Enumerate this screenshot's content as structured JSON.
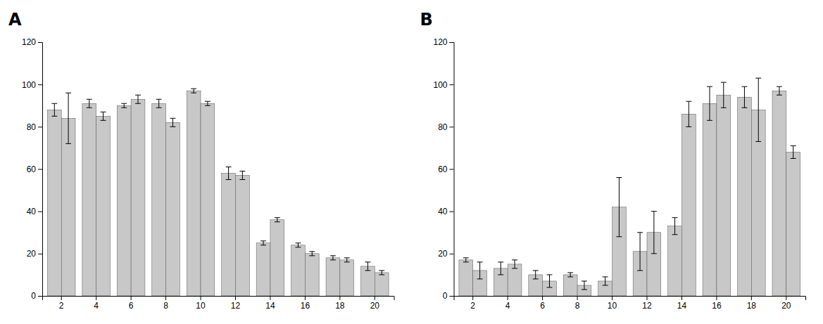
{
  "chart_data": [
    {
      "type": "bar",
      "title": "A",
      "categories": [
        "2",
        "4",
        "6",
        "8",
        "10",
        "12",
        "14",
        "16",
        "18",
        "20"
      ],
      "series": [
        {
          "color": "#c8c8c8",
          "values": [
            88,
            91,
            90,
            91,
            97,
            58,
            25,
            24,
            18,
            14
          ],
          "errors": [
            3,
            2,
            1,
            2,
            1,
            3,
            1,
            1,
            1,
            2
          ]
        },
        {
          "color": "#c8c8c8",
          "values": [
            84,
            85,
            93,
            82,
            91,
            57,
            36,
            20,
            17,
            11
          ],
          "errors": [
            12,
            2,
            2,
            2,
            1,
            2,
            1,
            1,
            1,
            1
          ]
        }
      ],
      "ylim": [
        0,
        120
      ],
      "yticks": [
        0,
        20,
        40,
        60,
        80,
        100,
        120
      ],
      "grid": false
    },
    {
      "type": "bar",
      "title": "B",
      "categories": [
        "2",
        "4",
        "6",
        "8",
        "10",
        "12",
        "14",
        "16",
        "18",
        "20"
      ],
      "series": [
        {
          "color": "#c8c8c8",
          "values": [
            17,
            13,
            10,
            10,
            7,
            21,
            33,
            91,
            94,
            97
          ],
          "errors": [
            1,
            3,
            2,
            1,
            2,
            9,
            4,
            8,
            5,
            2
          ]
        },
        {
          "color": "#c8c8c8",
          "values": [
            12,
            15,
            7,
            5,
            42,
            30,
            86,
            95,
            88,
            68
          ],
          "errors": [
            4,
            2,
            3,
            2,
            14,
            10,
            6,
            6,
            15,
            3
          ]
        }
      ],
      "ylim": [
        0,
        120
      ],
      "yticks": [
        0,
        20,
        40,
        60,
        80,
        100,
        120
      ],
      "grid": false
    }
  ]
}
